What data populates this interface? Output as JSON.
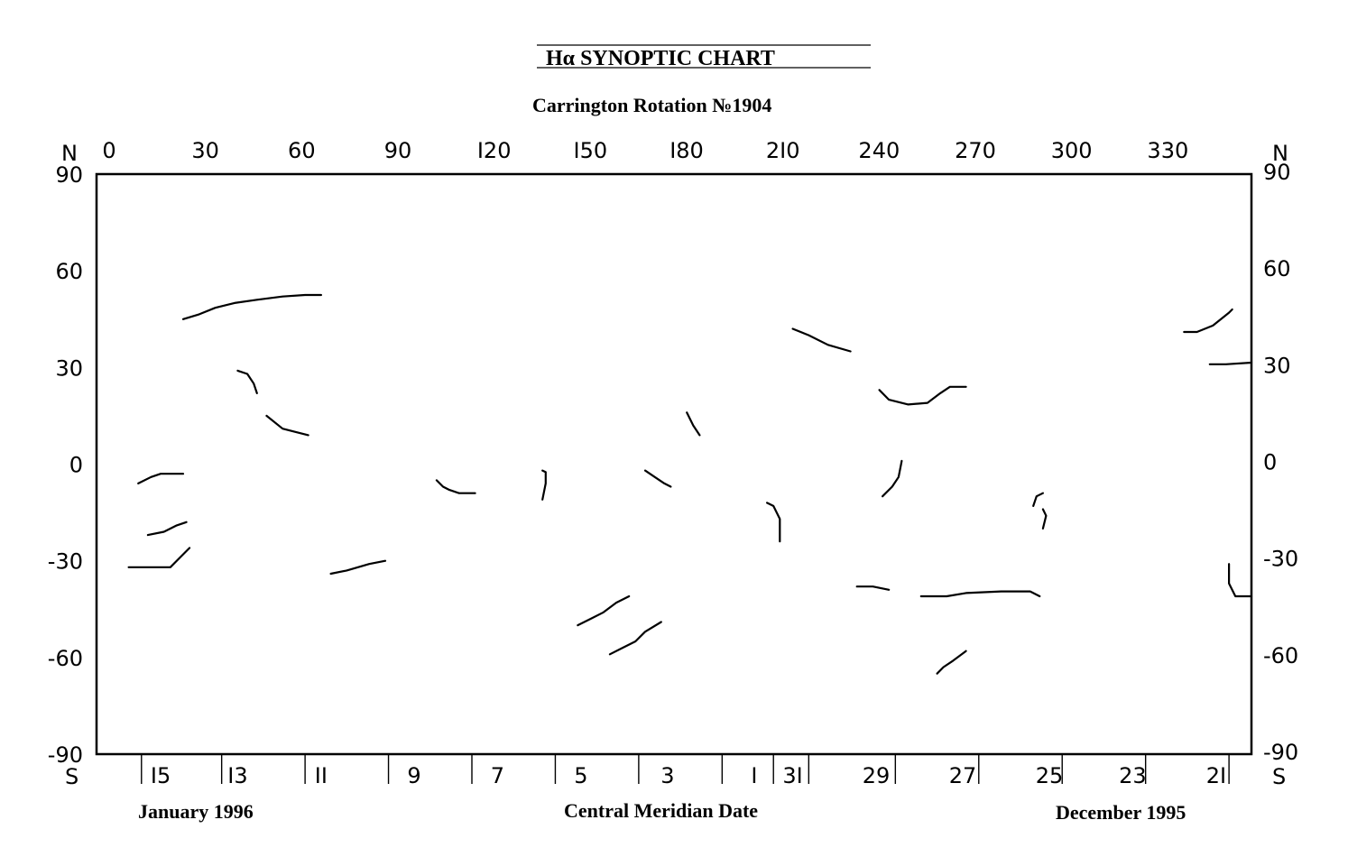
{
  "chart_data": {
    "type": "line",
    "title": "Hα  SYNOPTIC CHART",
    "subtitle": "Carrington  Rotation   №1904",
    "x_axis_top": {
      "ticks": [
        0,
        30,
        60,
        90,
        120,
        150,
        180,
        210,
        240,
        270,
        300,
        330
      ],
      "tick_labels": [
        "0",
        "30",
        "60",
        "90",
        "I20",
        "I50",
        "I80",
        "2I0",
        "240",
        "270",
        "300",
        "330"
      ],
      "range": [
        0,
        360
      ]
    },
    "y_axis": {
      "ticks": [
        90,
        60,
        30,
        0,
        -30,
        -60,
        -90
      ],
      "tick_labels": [
        "90",
        "60",
        "30",
        "0",
        "-30",
        "-60",
        "-90"
      ],
      "range": [
        -90,
        90
      ],
      "north_label": "N",
      "south_label": "S"
    },
    "x_axis_bottom": {
      "title": "Central Meridian Date",
      "left_caption": "January 1996",
      "right_caption": "December 1995",
      "date_labels": [
        {
          "label": "I5",
          "lon": 20
        },
        {
          "label": "I3",
          "lon": 44
        },
        {
          "label": "II",
          "lon": 70
        },
        {
          "label": "9",
          "lon": 99
        },
        {
          "label": "7",
          "lon": 125
        },
        {
          "label": "5",
          "lon": 151
        },
        {
          "label": "3",
          "lon": 178
        },
        {
          "label": "I",
          "lon": 205
        },
        {
          "label": "3I",
          "lon": 217
        },
        {
          "label": "29",
          "lon": 243
        },
        {
          "label": "27",
          "lon": 270
        },
        {
          "label": "25",
          "lon": 297
        },
        {
          "label": "23",
          "lon": 323
        },
        {
          "label": "2I",
          "lon": 349
        }
      ],
      "date_ticks_lon": [
        14,
        39,
        65,
        91,
        117,
        143,
        169,
        195,
        211,
        222,
        249,
        275,
        301,
        327,
        353
      ]
    },
    "series": [
      {
        "points": [
          [
            27,
            45
          ],
          [
            32,
            46.5
          ],
          [
            37,
            48.5
          ],
          [
            43,
            50
          ],
          [
            50,
            51
          ],
          [
            58,
            52
          ],
          [
            65,
            52.5
          ],
          [
            70,
            52.5
          ]
        ]
      },
      {
        "points": [
          [
            44,
            29
          ],
          [
            47,
            28
          ],
          [
            49,
            25
          ],
          [
            50,
            22
          ]
        ]
      },
      {
        "points": [
          [
            53,
            15
          ],
          [
            58,
            11
          ],
          [
            62,
            10
          ],
          [
            66,
            9
          ]
        ]
      },
      {
        "points": [
          [
            13,
            -6
          ],
          [
            17,
            -4
          ],
          [
            20,
            -3
          ],
          [
            27,
            -3
          ]
        ]
      },
      {
        "points": [
          [
            16,
            -22
          ],
          [
            21,
            -21
          ],
          [
            25,
            -19
          ],
          [
            28,
            -18
          ]
        ]
      },
      {
        "points": [
          [
            10,
            -32
          ],
          [
            20,
            -32
          ],
          [
            23,
            -32
          ],
          [
            26,
            -29
          ],
          [
            29,
            -26
          ]
        ]
      },
      {
        "points": [
          [
            73,
            -34
          ],
          [
            78,
            -33
          ],
          [
            85,
            -31
          ],
          [
            90,
            -30
          ]
        ]
      },
      {
        "points": [
          [
            106,
            -5
          ],
          [
            108,
            -7
          ],
          [
            110,
            -8
          ],
          [
            113,
            -9
          ],
          [
            118,
            -9
          ]
        ]
      },
      {
        "points": [
          [
            139,
            -2
          ],
          [
            140,
            -2.5
          ],
          [
            140,
            -6
          ],
          [
            139,
            -11
          ]
        ]
      },
      {
        "points": [
          [
            171,
            -2
          ],
          [
            174,
            -4
          ],
          [
            177,
            -6
          ],
          [
            179,
            -7
          ]
        ]
      },
      {
        "points": [
          [
            184,
            16
          ],
          [
            186,
            12
          ],
          [
            188,
            9
          ]
        ]
      },
      {
        "points": [
          [
            209,
            -12
          ],
          [
            211,
            -13
          ],
          [
            213,
            -17
          ],
          [
            213,
            -24
          ]
        ]
      },
      {
        "points": [
          [
            217,
            42
          ],
          [
            222,
            40
          ],
          [
            228,
            37
          ],
          [
            235,
            35
          ]
        ]
      },
      {
        "points": [
          [
            244,
            23
          ],
          [
            247,
            20
          ],
          [
            253,
            18.5
          ],
          [
            259,
            19
          ],
          [
            263,
            22
          ],
          [
            266,
            24
          ],
          [
            271,
            24
          ]
        ]
      },
      {
        "points": [
          [
            251,
            1
          ],
          [
            250,
            -4
          ],
          [
            248,
            -7
          ],
          [
            245,
            -10
          ]
        ]
      },
      {
        "points": [
          [
            237,
            -38
          ],
          [
            242,
            -38
          ],
          [
            247,
            -39
          ]
        ]
      },
      {
        "points": [
          [
            257,
            -41
          ],
          [
            265,
            -41
          ],
          [
            271,
            -40
          ],
          [
            282,
            -39.5
          ],
          [
            291,
            -39.5
          ],
          [
            294,
            -41
          ]
        ]
      },
      {
        "points": [
          [
            150,
            -50
          ],
          [
            154,
            -48
          ],
          [
            158,
            -46
          ],
          [
            162,
            -43
          ],
          [
            166,
            -41
          ]
        ]
      },
      {
        "points": [
          [
            160,
            -59
          ],
          [
            164,
            -57
          ],
          [
            168,
            -55
          ],
          [
            171,
            -52
          ],
          [
            176,
            -49
          ]
        ]
      },
      {
        "points": [
          [
            262,
            -65
          ],
          [
            264,
            -63
          ],
          [
            267,
            -61
          ],
          [
            271,
            -58
          ]
        ]
      },
      {
        "points": [
          [
            295,
            -9
          ],
          [
            293,
            -10
          ],
          [
            292,
            -13
          ]
        ]
      },
      {
        "points": [
          [
            295,
            -14
          ],
          [
            296,
            -16
          ],
          [
            295,
            -20
          ]
        ]
      },
      {
        "points": [
          [
            339,
            41
          ],
          [
            343,
            41
          ],
          [
            348,
            43
          ],
          [
            353,
            47
          ],
          [
            354,
            48
          ]
        ]
      },
      {
        "points": [
          [
            347,
            31
          ],
          [
            352,
            31
          ],
          [
            360,
            31.5
          ]
        ]
      },
      {
        "points": [
          [
            353,
            -31
          ],
          [
            353,
            -37
          ],
          [
            355,
            -41
          ],
          [
            360,
            -41
          ]
        ]
      }
    ]
  }
}
